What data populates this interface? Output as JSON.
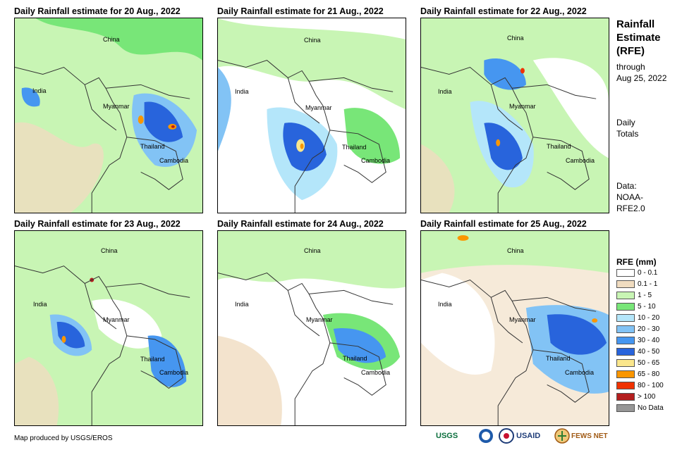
{
  "panels": [
    {
      "title": "Daily Rainfall estimate for 20 Aug., 2022"
    },
    {
      "title": "Daily Rainfall estimate for 21 Aug., 2022"
    },
    {
      "title": "Daily Rainfall estimate for 22 Aug., 2022"
    },
    {
      "title": "Daily Rainfall estimate for 23 Aug., 2022"
    },
    {
      "title": "Daily Rainfall estimate for 24 Aug., 2022"
    },
    {
      "title": "Daily Rainfall estimate for 25 Aug., 2022"
    }
  ],
  "map_labels": {
    "china": "China",
    "india": "India",
    "myanmar": "Myanmar",
    "thailand": "Thailand",
    "cambodia": "Cambodia"
  },
  "side": {
    "title_line1": "Rainfall",
    "title_line2": "Estimate",
    "title_line3": "(RFE)",
    "through_line1": "through",
    "through_line2": "Aug 25, 2022",
    "totals_line1": "Daily",
    "totals_line2": "Totals",
    "data_line1": "Data:",
    "data_line2": "NOAA-",
    "data_line3": "RFE2.0"
  },
  "legend": {
    "title": "RFE (mm)",
    "items": [
      {
        "label": "0 - 0.1",
        "color": "#ffffff"
      },
      {
        "label": "0.1 - 1",
        "color": "#f0dcc0"
      },
      {
        "label": "1 - 5",
        "color": "#c8f5b4"
      },
      {
        "label": "5 - 10",
        "color": "#78e678"
      },
      {
        "label": "10 - 20",
        "color": "#b4e6fa"
      },
      {
        "label": "20 - 30",
        "color": "#82c3f5"
      },
      {
        "label": "30 - 40",
        "color": "#4696f0"
      },
      {
        "label": "40 - 50",
        "color": "#2864dc"
      },
      {
        "label": "50 - 65",
        "color": "#fae68c"
      },
      {
        "label": "65 - 80",
        "color": "#fa9600"
      },
      {
        "label": "80 - 100",
        "color": "#f03200"
      },
      {
        "label": "> 100",
        "color": "#b41e1e"
      },
      {
        "label": "No Data",
        "color": "#969696"
      }
    ]
  },
  "footer": {
    "credit": "Map produced by USGS/EROS",
    "logo_usgs": "USGS",
    "logo_usaid": "USAID",
    "logo_fews": "FEWS NET"
  }
}
